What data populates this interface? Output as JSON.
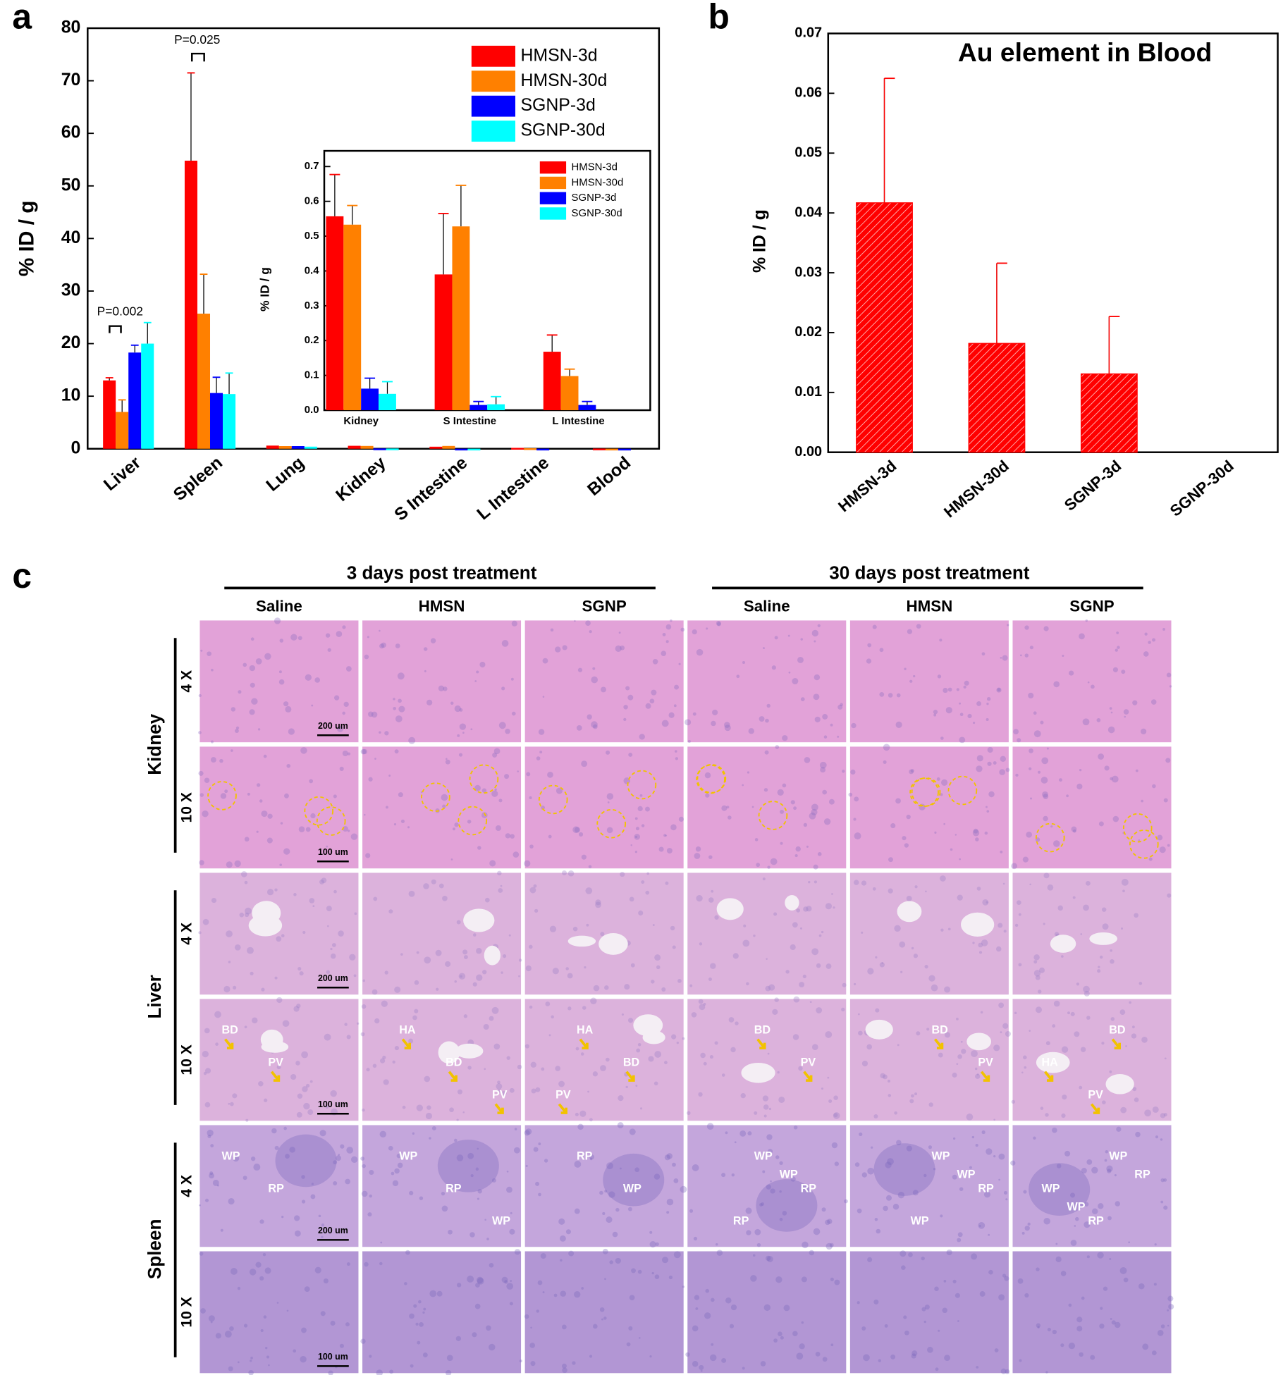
{
  "panel_labels": [
    "a",
    "b",
    "c"
  ],
  "chart_data": [
    {
      "type": "bar",
      "y_label": "% ID / g",
      "categories": [
        "Liver",
        "Spleen",
        "Lung",
        "Kidney",
        "S Intestine",
        "L Intestine",
        "Blood"
      ],
      "series": [
        {
          "name": "HMSN-3d",
          "color": "#ff0000",
          "values": [
            13,
            54.8,
            0.6,
            0.56,
            0.39,
            0.17,
            0.04
          ],
          "errors": [
            0.5,
            16.7,
            null,
            null,
            null,
            null,
            null
          ]
        },
        {
          "name": "HMSN-30d",
          "color": "#ff8000",
          "values": [
            7,
            25.7,
            0.5,
            0.53,
            0.53,
            0.1,
            0.018
          ],
          "errors": [
            2.3,
            7.5,
            null,
            null,
            null,
            null,
            null
          ]
        },
        {
          "name": "SGNP-3d",
          "color": "#0000ff",
          "values": [
            18.3,
            10.6,
            0.5,
            0.06,
            0.015,
            0.015,
            0.013
          ],
          "errors": [
            1.4,
            3,
            null,
            null,
            null,
            null,
            null
          ]
        },
        {
          "name": "SGNP-30d",
          "color": "#00ffff",
          "values": [
            20,
            10.4,
            0.4,
            0.047,
            0.017,
            0,
            0
          ],
          "errors": [
            4,
            4,
            null,
            null,
            null,
            null,
            null
          ]
        }
      ],
      "annotations": [
        "P=0.002",
        "P=0.025"
      ],
      "ylim": [
        0,
        80
      ],
      "yticks": [
        0,
        10,
        20,
        30,
        40,
        50,
        60,
        70,
        80
      ],
      "legend": "upper right"
    },
    {
      "type": "bar",
      "y_label": "% ID / g",
      "categories": [
        "Kidney",
        "S Intestine",
        "L Intestine"
      ],
      "series": [
        {
          "name": "HMSN-3d",
          "color": "#ff0000",
          "values": [
            0.557,
            0.39,
            0.168
          ],
          "errors": [
            0.12,
            0.175,
            0.048
          ]
        },
        {
          "name": "HMSN-30d",
          "color": "#ff8000",
          "values": [
            0.533,
            0.528,
            0.098
          ],
          "errors": [
            0.055,
            0.118,
            0.02
          ]
        },
        {
          "name": "SGNP-3d",
          "color": "#0000ff",
          "values": [
            0.062,
            0.015,
            0.015
          ],
          "errors": [
            0.03,
            0.01,
            0.01
          ]
        },
        {
          "name": "SGNP-30d",
          "color": "#00ffff",
          "values": [
            0.047,
            0.017,
            0
          ],
          "errors": [
            0.035,
            0.022,
            null
          ]
        }
      ],
      "ylim": [
        0,
        0.745
      ],
      "yticks": [
        {
          "value": 0,
          "label": "0.0"
        },
        0.1,
        0.2,
        0.3,
        0.4,
        0.5,
        0.6,
        0.7
      ],
      "legend": "upper right"
    },
    {
      "type": "bar",
      "title": "Au element in Blood",
      "y_label": "% ID / g",
      "categories": [
        "HMSN-3d",
        "HMSN-30d",
        "SGNP-3d",
        "SGNP-30d"
      ],
      "values": [
        0.0417,
        0.0182,
        0.0131,
        0
      ],
      "errors": [
        0.0208,
        0.0134,
        0.0096,
        null
      ],
      "color": "#ff0000",
      "hatch": true,
      "ylim": [
        0,
        0.07
      ],
      "yticks": [
        {
          "value": 0,
          "label": "0.00"
        },
        0.01,
        0.02,
        0.03,
        0.04,
        0.05,
        0.06,
        0.07
      ]
    }
  ],
  "histology": {
    "column_groups": [
      {
        "title": "3 days post treatment",
        "columns": [
          "Saline",
          "HMSN",
          "SGNP"
        ]
      },
      {
        "title": "30 days post treatment",
        "columns": [
          "Saline",
          "HMSN",
          "SGNP"
        ]
      }
    ],
    "organs": [
      {
        "name": "Kidney",
        "rows": [
          {
            "magnification": "4 X",
            "scale_bar": "200 um",
            "labels": [
              [],
              [],
              [],
              [],
              [],
              []
            ]
          },
          {
            "magnification": "10 X",
            "scale_bar": "100 um",
            "labels": [
              [],
              [],
              [],
              [],
              [],
              []
            ]
          }
        ]
      },
      {
        "name": "Liver",
        "rows": [
          {
            "magnification": "4 X",
            "scale_bar": "200 um",
            "labels": [
              [],
              [],
              [],
              [],
              [],
              []
            ]
          },
          {
            "magnification": "10 X",
            "scale_bar": "100 um",
            "labels": [
              [
                "BD",
                "PV"
              ],
              [
                "HA",
                "BD",
                "PV"
              ],
              [
                "HA",
                "BD",
                "PV"
              ],
              [
                "BD",
                "PV"
              ],
              [
                "BD",
                "PV"
              ],
              [
                "BD",
                "HA",
                "PV"
              ]
            ]
          }
        ]
      },
      {
        "name": "Spleen",
        "rows": [
          {
            "magnification": "4 X",
            "scale_bar": "200 um",
            "labels": [
              [
                "WP",
                "RP"
              ],
              [
                "WP",
                "RP",
                "WP"
              ],
              [
                "RP",
                "WP"
              ],
              [
                "WP",
                "RP",
                "RP",
                "WP"
              ],
              [
                "WP",
                "RP",
                "WP",
                "WP"
              ],
              [
                "WP",
                "WP",
                "RP",
                "RP",
                "WP"
              ]
            ]
          },
          {
            "magnification": "10 X",
            "scale_bar": "100 um",
            "labels": [
              [],
              [],
              [],
              [],
              [],
              []
            ]
          }
        ]
      }
    ]
  }
}
